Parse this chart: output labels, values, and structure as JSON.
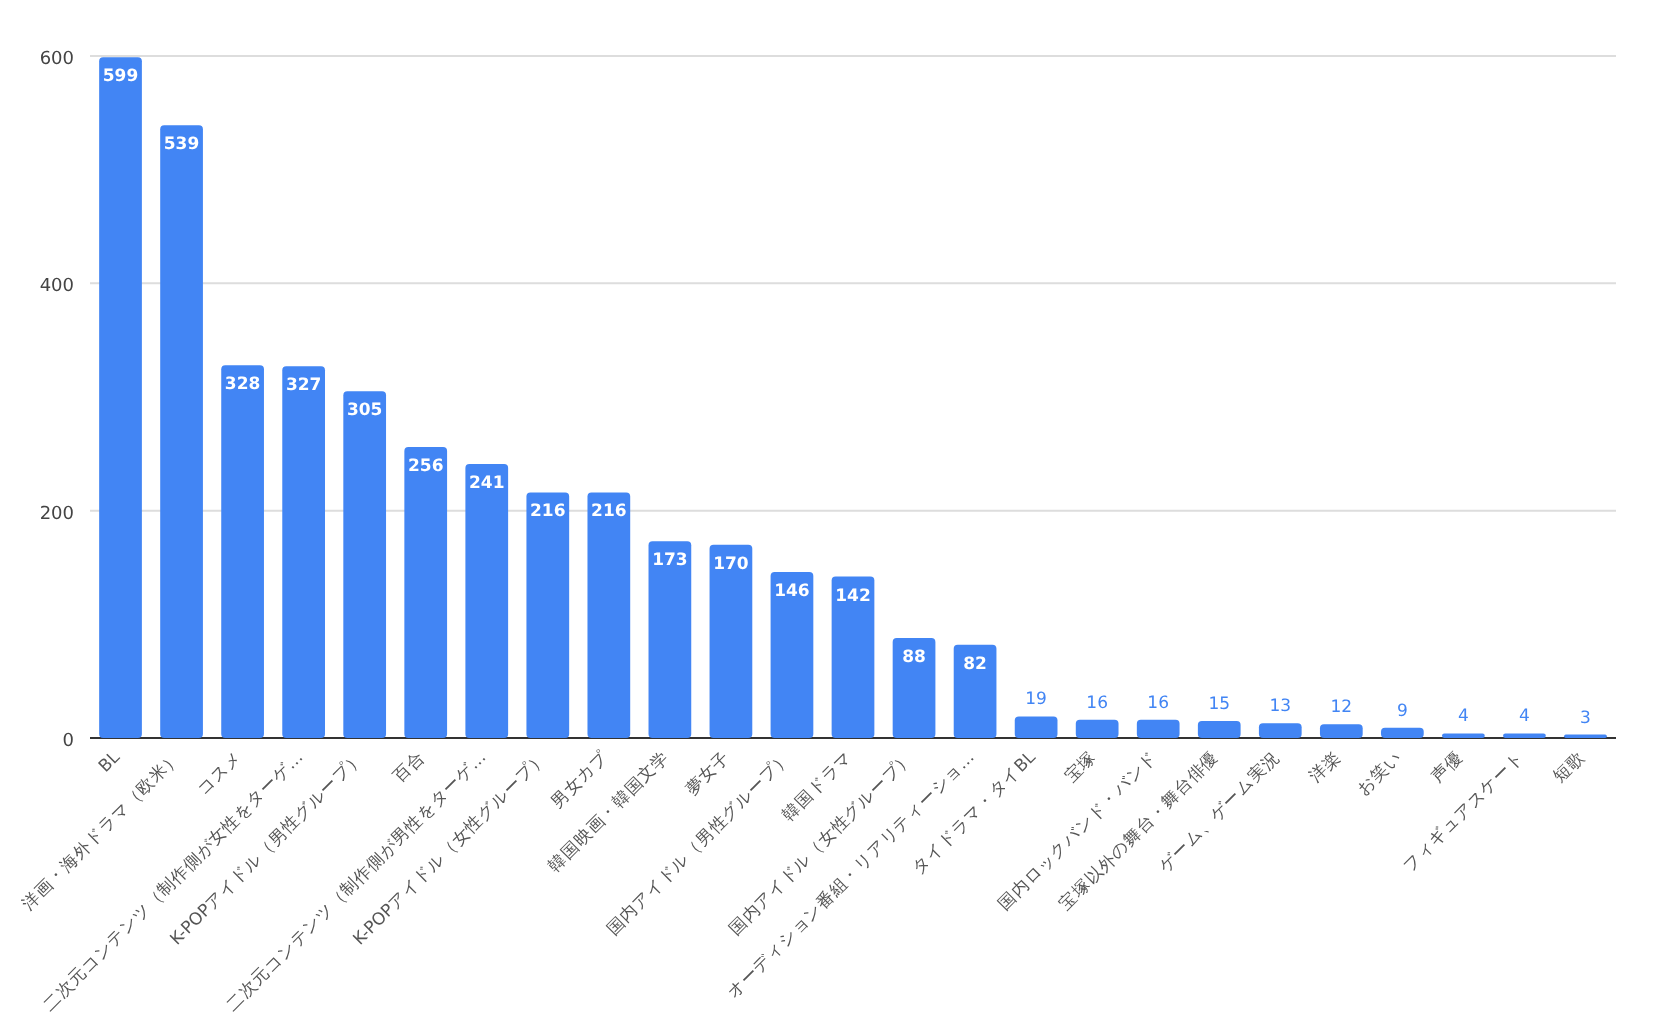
{
  "chart_data": {
    "type": "bar",
    "categories": [
      "BL",
      "洋画・海外ドラマ（欧米）",
      "コスメ",
      "二次元コンテンツ（制作側が女性をターゲ…",
      "K-POPアイドル（男性グループ）",
      "百合",
      "二次元コンテンツ（制作側が男性をターゲ…",
      "K-POPアイドル（女性グループ）",
      "男女カプ",
      "韓国映画・韓国文学",
      "夢女子",
      "国内アイドル（男性グループ）",
      "韓国ドラマ",
      "国内アイドル（女性グループ）",
      "オーディション番組・リアリティーショ…",
      "タイドラマ・タイBL",
      "宝塚",
      "国内ロックバンド・バンド",
      "宝塚以外の舞台・舞台俳優",
      "ゲーム、ゲーム実況",
      "洋楽",
      "お笑い",
      "声優",
      "フィギュアスケート",
      "短歌"
    ],
    "values": [
      599,
      539,
      328,
      327,
      305,
      256,
      241,
      216,
      216,
      173,
      170,
      146,
      142,
      88,
      82,
      19,
      16,
      16,
      15,
      13,
      12,
      9,
      4,
      4,
      3
    ],
    "color": "#4285f4",
    "ylim": [
      0,
      600
    ],
    "yticks": [
      0,
      200,
      400,
      600
    ],
    "grid": "y",
    "data_labels": true
  }
}
